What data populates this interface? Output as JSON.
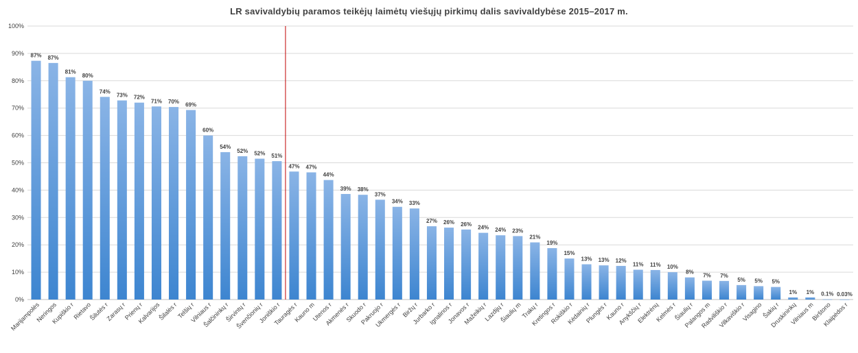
{
  "chart_data": {
    "type": "bar",
    "title": "LR savivaldybių  paramos  teikėjų  laimėtų  viešųjų  pirkimų  dalis  savivaldybėse  2015–2017 m.",
    "xlabel": "",
    "ylabel": "",
    "ylim": [
      0,
      100
    ],
    "yticks": [
      "0%",
      "10%",
      "20%",
      "30%",
      "40%",
      "50%",
      "60%",
      "70%",
      "80%",
      "90%",
      "100%"
    ],
    "grid": true,
    "legend": "none",
    "colors": {
      "bar_top": "#8ab4e6",
      "bar_bottom": "#3d85d0",
      "grid": "#d9d9d9",
      "separator": "#c00000"
    },
    "separator_after_index": 14,
    "categories": [
      "Marijampolės",
      "Neringos",
      "Kupiškio r",
      "Rietavo",
      "Šilutės r",
      "Zarasų r",
      "Prienų r",
      "Kalvarijos",
      "Šilalės r",
      "Telšių r",
      "Vilniaus r",
      "Šalčininkų r",
      "Širvintų r",
      "Švenčionių r",
      "Joniškio r",
      "Tauragės r",
      "Kauno m",
      "Utenos r",
      "Akmenės r",
      "Skuodo r",
      "Pakruojo r",
      "Ukmergės r",
      "Biržų r",
      "Jurbarko r",
      "Ignalinos r",
      "Jonavos r",
      "Mažeikių r",
      "Lazdijų r",
      "Šiaulių m",
      "Trakų r",
      "Kretingos r",
      "Rokiškio r",
      "Kėdainių r",
      "Plungės r",
      "Kauno r",
      "Anykščių r",
      "Elektrėnų",
      "Kelmės r",
      "Šiaulių r",
      "Palangos m",
      "Radviliškio r",
      "Vilkaviškio r",
      "Visagino",
      "Šakių r",
      "Druskininkų",
      "Vilniaus m",
      "Birštono",
      "Klaipėdos r"
    ],
    "values": [
      87.3,
      86.5,
      81.3,
      80.0,
      74.1,
      72.8,
      72.0,
      70.6,
      70.4,
      69.3,
      60.0,
      53.9,
      52.4,
      51.5,
      50.6,
      46.8,
      46.5,
      43.7,
      38.6,
      38.3,
      36.5,
      33.9,
      33.3,
      26.8,
      26.3,
      25.6,
      24.4,
      23.5,
      23.2,
      20.9,
      18.8,
      15.0,
      12.9,
      12.5,
      12.3,
      10.9,
      10.8,
      10.0,
      8.1,
      6.9,
      6.8,
      5.3,
      4.9,
      4.6,
      0.8,
      0.8,
      0.1,
      0.03
    ],
    "data_labels": [
      "87%",
      "87%",
      "81%",
      "80%",
      "74%",
      "73%",
      "72%",
      "71%",
      "70%",
      "69%",
      "60%",
      "54%",
      "52%",
      "52%",
      "51%",
      "47%",
      "47%",
      "44%",
      "39%",
      "38%",
      "37%",
      "34%",
      "33%",
      "27%",
      "26%",
      "26%",
      "24%",
      "24%",
      "23%",
      "21%",
      "19%",
      "15%",
      "13%",
      "13%",
      "12%",
      "11%",
      "11%",
      "10%",
      "8%",
      "7%",
      "7%",
      "5%",
      "5%",
      "5%",
      "1%",
      "1%",
      "0.1%",
      "0.03%"
    ]
  }
}
